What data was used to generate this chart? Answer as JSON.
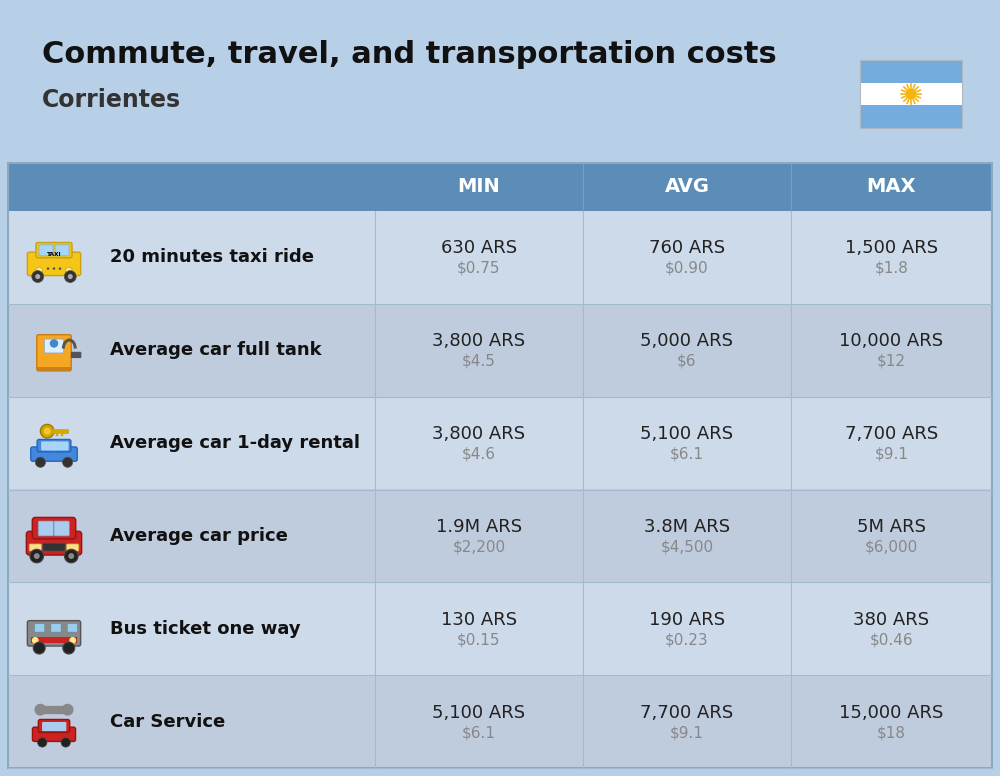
{
  "title": "Commute, travel, and transportation costs",
  "subtitle": "Corrientes",
  "bg_color": "#b8cfe8",
  "header_bg": "#5b8db8",
  "header_text_color": "#ffffff",
  "row_bg_even": "#cddaea",
  "row_bg_odd": "#cddaea",
  "divider_color": "#a0bacf",
  "col_headers": [
    "MIN",
    "AVG",
    "MAX"
  ],
  "rows": [
    {
      "label": "20 minutes taxi ride",
      "min_ars": "630 ARS",
      "min_usd": "$0.75",
      "avg_ars": "760 ARS",
      "avg_usd": "$0.90",
      "max_ars": "1,500 ARS",
      "max_usd": "$1.8"
    },
    {
      "label": "Average car full tank",
      "min_ars": "3,800 ARS",
      "min_usd": "$4.5",
      "avg_ars": "5,000 ARS",
      "avg_usd": "$6",
      "max_ars": "10,000 ARS",
      "max_usd": "$12"
    },
    {
      "label": "Average car 1-day rental",
      "min_ars": "3,800 ARS",
      "min_usd": "$4.6",
      "avg_ars": "5,100 ARS",
      "avg_usd": "$6.1",
      "max_ars": "7,700 ARS",
      "max_usd": "$9.1"
    },
    {
      "label": "Average car price",
      "min_ars": "1.9M ARS",
      "min_usd": "$2,200",
      "avg_ars": "3.8M ARS",
      "avg_usd": "$4,500",
      "max_ars": "5M ARS",
      "max_usd": "$6,000"
    },
    {
      "label": "Bus ticket one way",
      "min_ars": "130 ARS",
      "min_usd": "$0.15",
      "avg_ars": "190 ARS",
      "avg_usd": "$0.23",
      "max_ars": "380 ARS",
      "max_usd": "$0.46"
    },
    {
      "label": "Car Service",
      "min_ars": "5,100 ARS",
      "min_usd": "$6.1",
      "avg_ars": "7,700 ARS",
      "avg_usd": "$9.1",
      "max_ars": "15,000 ARS",
      "max_usd": "$18"
    }
  ],
  "flag_colors": [
    "#74acdf",
    "#ffffff",
    "#74acdf"
  ],
  "sun_color": "#f6b40e",
  "title_fontsize": 22,
  "subtitle_fontsize": 17,
  "header_fontsize": 14,
  "label_fontsize": 13,
  "value_fontsize": 13,
  "usd_fontsize": 11
}
